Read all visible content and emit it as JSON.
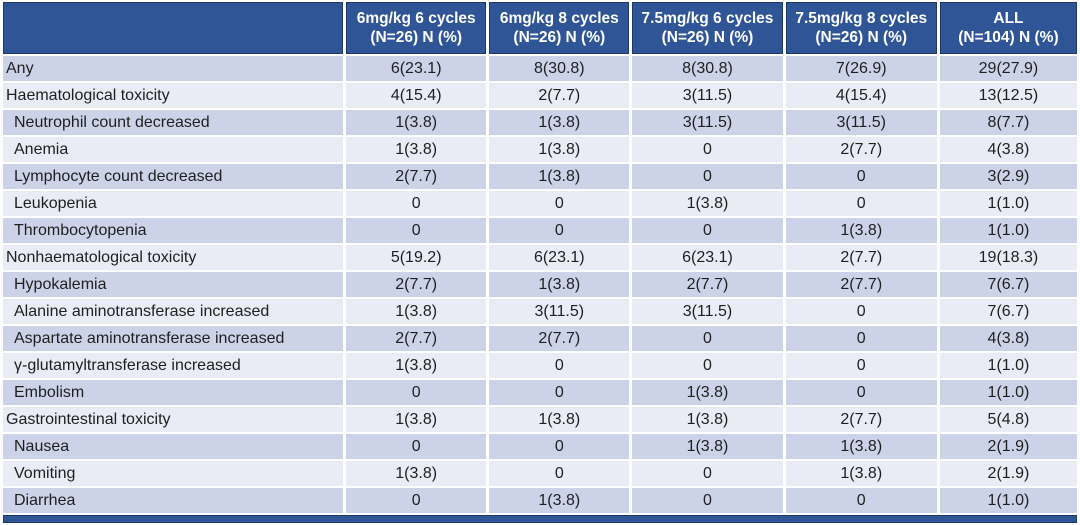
{
  "colors": {
    "header_bg": "#2F5597",
    "header_border": "#1F3864",
    "row_band_dark": "#CCD3E8",
    "row_band_light": "#E9EBF5",
    "header_text": "#FFFFFF",
    "body_text": "#1F1F1F"
  },
  "table": {
    "header": [
      {
        "line1": "",
        "line2": ""
      },
      {
        "line1": "6mg/kg 6 cycles",
        "line2": "(N=26) N (%)"
      },
      {
        "line1": "6mg/kg 8 cycles",
        "line2": "(N=26) N (%)"
      },
      {
        "line1": "7.5mg/kg 6 cycles",
        "line2": "(N=26) N (%)"
      },
      {
        "line1": "7.5mg/kg 8 cycles",
        "line2": "(N=26) N (%)"
      },
      {
        "line1": "ALL",
        "line2": "(N=104) N (%)"
      }
    ],
    "rows": [
      {
        "label": "Any",
        "sub": false,
        "values": [
          "6(23.1)",
          "8(30.8)",
          "8(30.8)",
          "7(26.9)",
          "29(27.9)"
        ]
      },
      {
        "label": "Haematological toxicity",
        "sub": false,
        "values": [
          "4(15.4)",
          "2(7.7)",
          "3(11.5)",
          "4(15.4)",
          "13(12.5)"
        ]
      },
      {
        "label": "Neutrophil count decreased",
        "sub": true,
        "values": [
          "1(3.8)",
          "1(3.8)",
          "3(11.5)",
          "3(11.5)",
          "8(7.7)"
        ]
      },
      {
        "label": "Anemia",
        "sub": true,
        "values": [
          "1(3.8)",
          "1(3.8)",
          "0",
          "2(7.7)",
          "4(3.8)"
        ]
      },
      {
        "label": "Lymphocyte count decreased",
        "sub": true,
        "values": [
          "2(7.7)",
          "1(3.8)",
          "0",
          "0",
          "3(2.9)"
        ]
      },
      {
        "label": "Leukopenia",
        "sub": true,
        "values": [
          "0",
          "0",
          "1(3.8)",
          "0",
          "1(1.0)"
        ]
      },
      {
        "label": "Thrombocytopenia",
        "sub": true,
        "values": [
          "0",
          "0",
          "0",
          "1(3.8)",
          "1(1.0)"
        ]
      },
      {
        "label": "Nonhaematological toxicity",
        "sub": false,
        "values": [
          "5(19.2)",
          "6(23.1)",
          "6(23.1)",
          "2(7.7)",
          "19(18.3)"
        ]
      },
      {
        "label": "Hypokalemia",
        "sub": true,
        "values": [
          "2(7.7)",
          "1(3.8)",
          "2(7.7)",
          "2(7.7)",
          "7(6.7)"
        ]
      },
      {
        "label": "Alanine aminotransferase increased",
        "sub": true,
        "values": [
          "1(3.8)",
          "3(11.5)",
          "3(11.5)",
          "0",
          "7(6.7)"
        ]
      },
      {
        "label": "Aspartate aminotransferase increased",
        "sub": true,
        "values": [
          "2(7.7)",
          "2(7.7)",
          "0",
          "0",
          "4(3.8)"
        ]
      },
      {
        "label": "γ-glutamyltransferase increased",
        "sub": true,
        "values": [
          "1(3.8)",
          "0",
          "0",
          "0",
          "1(1.0)"
        ]
      },
      {
        "label": "Embolism",
        "sub": true,
        "values": [
          "0",
          "0",
          "1(3.8)",
          "0",
          "1(1.0)"
        ]
      },
      {
        "label": "Gastrointestinal toxicity",
        "sub": false,
        "values": [
          "1(3.8)",
          "1(3.8)",
          "1(3.8)",
          "2(7.7)",
          "5(4.8)"
        ]
      },
      {
        "label": "Nausea",
        "sub": true,
        "values": [
          "0",
          "0",
          "1(3.8)",
          "1(3.8)",
          "2(1.9)"
        ]
      },
      {
        "label": "Vomiting",
        "sub": true,
        "values": [
          "1(3.8)",
          "0",
          "0",
          "1(3.8)",
          "2(1.9)"
        ]
      },
      {
        "label": "Diarrhea",
        "sub": true,
        "values": [
          "0",
          "1(3.8)",
          "0",
          "0",
          "1(1.0)"
        ]
      }
    ]
  }
}
